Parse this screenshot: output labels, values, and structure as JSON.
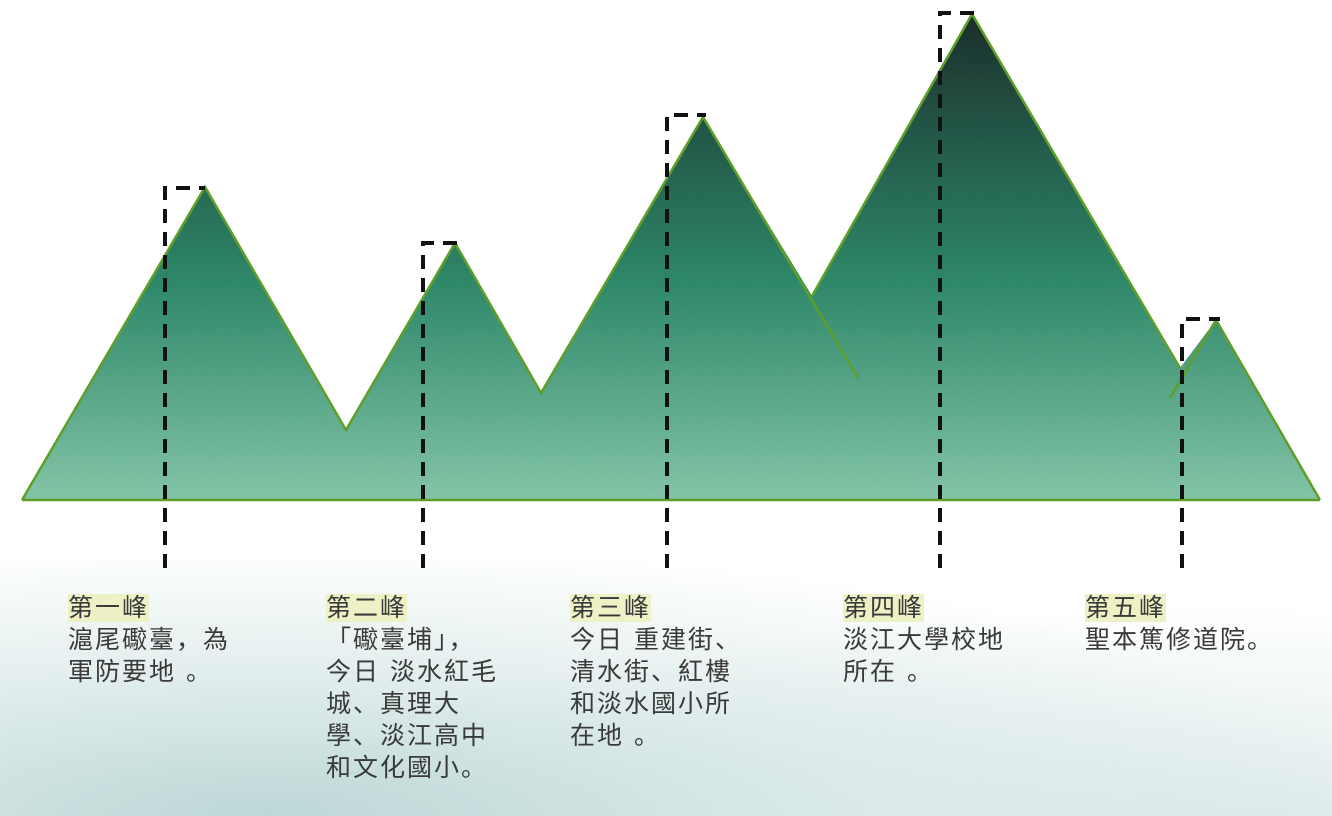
{
  "peaks": [
    {
      "name": "第一峰",
      "lines": [
        "滬尾礮臺，為",
        "軍防要地 。"
      ]
    },
    {
      "name": "第二峰",
      "lines": [
        "「礮臺埔」，",
        "今日 淡水紅毛",
        "城、真理大",
        "學、淡江高中",
        "和文化國小。"
      ]
    },
    {
      "name": "第三峰",
      "lines": [
        "今日 重建街、",
        "清水街、紅樓",
        "和淡水國小所",
        "在地 。"
      ]
    },
    {
      "name": "第四峰",
      "lines": [
        "淡江大學校地",
        "所在 。"
      ]
    },
    {
      "name": "第五峰",
      "lines": [
        "聖本篤修道院。"
      ]
    }
  ],
  "colors": {
    "mountain_top": "#1f3b35",
    "mountain_mid": "#2f8a6b",
    "mountain_bottom": "#7fc2a4",
    "outline": "#5f9e2b",
    "dash": "#111111",
    "highlight": "#eef0c6"
  }
}
